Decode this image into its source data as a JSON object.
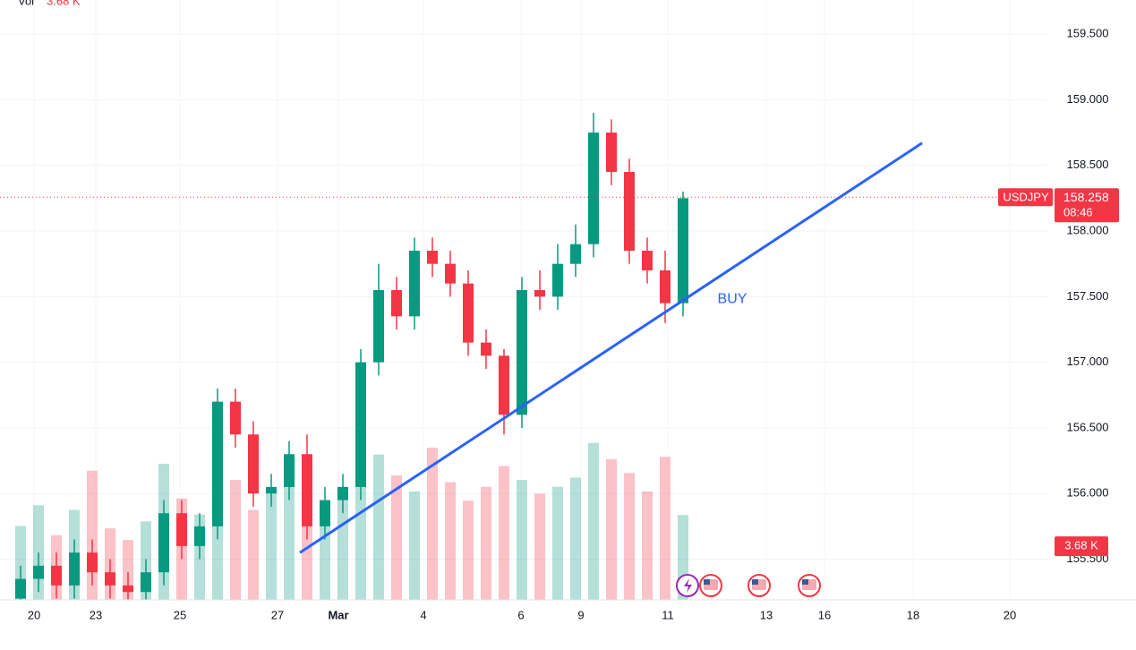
{
  "chart_data": {
    "type": "candlestick",
    "symbol": "USDJPY",
    "last_price": 158.258,
    "countdown": "08:46",
    "legend": {
      "label": "Vol",
      "value": "3.68 K"
    },
    "annotation": "BUY",
    "colors": {
      "up": "#089981",
      "down": "#f23645",
      "line": "#2962ff"
    },
    "x": [
      1,
      3,
      5,
      7,
      9,
      11,
      13,
      15,
      17,
      19,
      21,
      23,
      25,
      27,
      29,
      31,
      33,
      35,
      37,
      39,
      41,
      43,
      45,
      47,
      49,
      51,
      53,
      55,
      57,
      59,
      61,
      63,
      65,
      67,
      69,
      71,
      73,
      75
    ],
    "open": [
      155.2,
      155.35,
      155.45,
      155.3,
      155.55,
      155.4,
      155.3,
      155.25,
      155.4,
      155.85,
      155.6,
      155.75,
      156.7,
      156.45,
      156.0,
      156.05,
      156.3,
      155.75,
      155.95,
      156.05,
      157.0,
      157.55,
      157.35,
      157.85,
      157.75,
      157.6,
      157.15,
      157.05,
      156.6,
      157.55,
      157.5,
      157.75,
      157.9,
      158.75,
      158.45,
      157.85,
      157.7,
      157.45
    ],
    "high": [
      155.45,
      155.55,
      155.55,
      155.65,
      155.65,
      155.5,
      155.4,
      155.5,
      155.95,
      155.95,
      155.85,
      156.8,
      156.8,
      156.55,
      156.15,
      156.4,
      156.45,
      156.05,
      156.15,
      157.1,
      157.75,
      157.65,
      157.95,
      157.95,
      157.85,
      157.7,
      157.25,
      157.1,
      157.65,
      157.7,
      157.9,
      158.05,
      158.9,
      158.85,
      158.55,
      157.95,
      157.85,
      158.3
    ],
    "low": [
      155.1,
      155.25,
      155.2,
      155.2,
      155.3,
      155.2,
      155.15,
      155.15,
      155.3,
      155.5,
      155.5,
      155.65,
      156.35,
      155.9,
      155.9,
      155.95,
      155.65,
      155.65,
      155.85,
      155.95,
      156.9,
      157.25,
      157.25,
      157.65,
      157.5,
      157.05,
      156.95,
      156.45,
      156.5,
      157.4,
      157.4,
      157.65,
      157.8,
      158.35,
      157.75,
      157.6,
      157.3,
      157.35
    ],
    "close": [
      155.35,
      155.45,
      155.3,
      155.55,
      155.4,
      155.3,
      155.25,
      155.4,
      155.85,
      155.6,
      155.75,
      156.7,
      156.45,
      156.0,
      156.05,
      156.3,
      155.75,
      155.95,
      156.05,
      157.0,
      157.55,
      157.35,
      157.85,
      157.75,
      157.6,
      157.15,
      157.05,
      156.6,
      157.55,
      157.5,
      157.75,
      157.9,
      158.75,
      158.45,
      157.85,
      157.7,
      157.45,
      158.25
    ],
    "volume": {
      "values": [
        3.2,
        4.1,
        2.8,
        3.9,
        5.6,
        3.1,
        2.6,
        3.4,
        5.9,
        4.4,
        3.7,
        4.8,
        5.2,
        3.9,
        4.6,
        5.1,
        4.2,
        3.8,
        4.9,
        5.7,
        6.3,
        5.4,
        4.7,
        6.6,
        5.1,
        4.3,
        4.9,
        5.8,
        5.2,
        4.6,
        4.9,
        5.3,
        6.8,
        6.1,
        5.5,
        4.7,
        6.2,
        3.68
      ],
      "ylim": [
        0,
        26
      ],
      "last_label": "3.68 K"
    },
    "trendline": {
      "x": [
        32.2,
        101.7
      ],
      "y": [
        155.55,
        158.67
      ]
    },
    "annotation_at": {
      "x": 80.5,
      "y": 157.48
    },
    "xlim": [
      0,
      115.7
    ],
    "ylim": [
      155.19,
      159.76
    ],
    "xticks": [
      {
        "value": 2.5,
        "label": "20"
      },
      {
        "value": 9.4,
        "label": "23"
      },
      {
        "value": 18.8,
        "label": "25"
      },
      {
        "value": 29.7,
        "label": "27"
      },
      {
        "value": 36.5,
        "label": "Mar"
      },
      {
        "value": 46,
        "label": "4"
      },
      {
        "value": 56.9,
        "label": "6"
      },
      {
        "value": 63.6,
        "label": "9"
      },
      {
        "value": 73.3,
        "label": "11"
      },
      {
        "value": 84.3,
        "label": "13"
      },
      {
        "value": 90.8,
        "label": "16"
      },
      {
        "value": 100.7,
        "label": "18"
      },
      {
        "value": 111.5,
        "label": "20"
      }
    ],
    "yticks": [
      {
        "value": 155.5,
        "label": "155.500"
      },
      {
        "value": 156,
        "label": "156.000"
      },
      {
        "value": 156.5,
        "label": "156.500"
      },
      {
        "value": 157,
        "label": "157.000"
      },
      {
        "value": 157.5,
        "label": "157.500"
      },
      {
        "value": 158,
        "label": "158.000"
      },
      {
        "value": 158.5,
        "label": "158.500"
      },
      {
        "value": 159,
        "label": "159.000"
      },
      {
        "value": 159.5,
        "label": "159.500"
      }
    ],
    "grid": true
  }
}
